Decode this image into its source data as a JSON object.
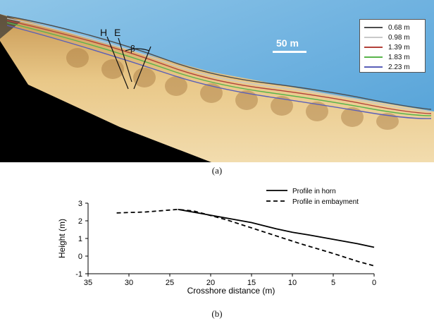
{
  "panel_a": {
    "caption": "(a)",
    "annotations": {
      "horn": "H",
      "embayment": "E",
      "beta": "β"
    },
    "scale_bar": "50 m",
    "legend": [
      {
        "label": "0.68 m",
        "color": "#4d4d4d"
      },
      {
        "label": "0.98 m",
        "color": "#c9c9c9"
      },
      {
        "label": "1.39 m",
        "color": "#b3413a"
      },
      {
        "label": "1.83 m",
        "color": "#59b44b"
      },
      {
        "label": "2.23 m",
        "color": "#5a5fb8"
      }
    ]
  },
  "panel_b": {
    "caption": "(b)"
  },
  "chart_data": {
    "type": "line",
    "xlabel": "Crosshore distance (m)",
    "ylabel": "Height (m)",
    "xlim": [
      35,
      0
    ],
    "ylim": [
      -1,
      3
    ],
    "x_reversed": true,
    "x_ticks": [
      35,
      30,
      25,
      20,
      15,
      10,
      5,
      0
    ],
    "y_ticks": [
      -1,
      0,
      1,
      2,
      3
    ],
    "legend_position": "top-right",
    "series": [
      {
        "name": "Profile in horn",
        "style": "solid",
        "x": [
          24,
          21,
          18,
          15,
          12,
          10,
          8,
          5,
          2,
          0
        ],
        "y": [
          2.65,
          2.4,
          2.15,
          1.9,
          1.55,
          1.35,
          1.2,
          0.95,
          0.7,
          0.5
        ]
      },
      {
        "name": "Profile in embayment",
        "style": "dashed",
        "x": [
          31.5,
          28,
          24,
          22,
          20,
          18,
          15,
          12,
          9,
          5,
          2,
          0
        ],
        "y": [
          2.45,
          2.5,
          2.65,
          2.55,
          2.3,
          2.05,
          1.6,
          1.15,
          0.7,
          0.15,
          -0.3,
          -0.55
        ]
      }
    ]
  }
}
